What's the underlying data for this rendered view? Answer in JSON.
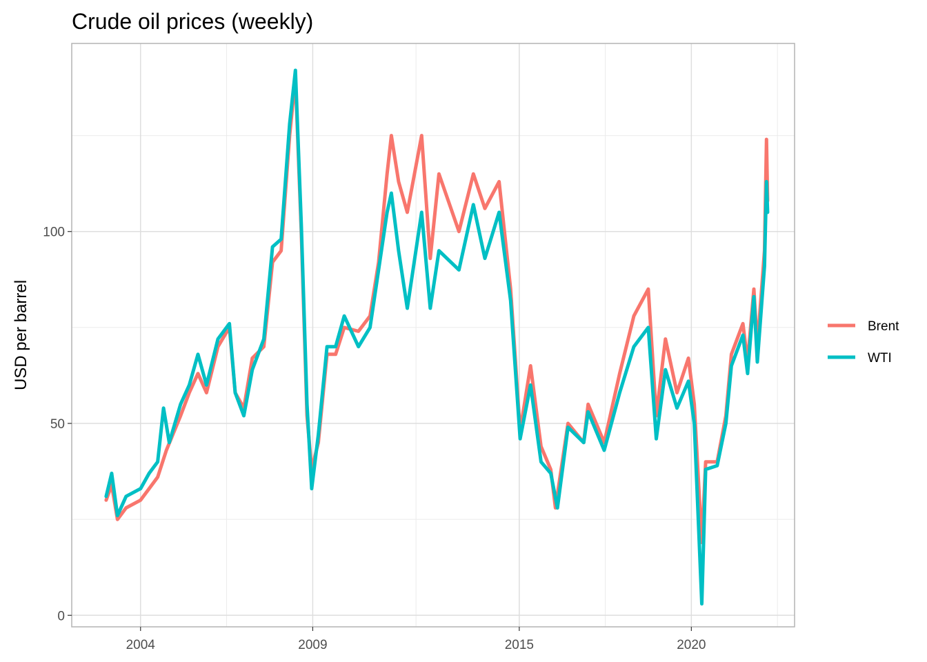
{
  "chart_data": {
    "type": "line",
    "title": "Crude oil prices (weekly)",
    "xlabel": "",
    "ylabel": "USD per barrel",
    "x_tick_labels": [
      "2004",
      "2009",
      "2015",
      "2020"
    ],
    "x_tick_dates": [
      "2004-01-01",
      "2009-01-01",
      "2015-01-01",
      "2020-01-01"
    ],
    "y_ticks": [
      0,
      50,
      100
    ],
    "xlim": [
      "2002-01-01",
      "2022-12-31"
    ],
    "ylim": [
      -3,
      149
    ],
    "grid": true,
    "legend_position": "right",
    "series": [
      {
        "name": "Brent",
        "color": "#F8766D",
        "points": [
          [
            "2003-01-01",
            30
          ],
          [
            "2003-03-01",
            34
          ],
          [
            "2003-05-01",
            25
          ],
          [
            "2003-08-01",
            28
          ],
          [
            "2004-01-01",
            30
          ],
          [
            "2004-04-01",
            33
          ],
          [
            "2004-07-01",
            36
          ],
          [
            "2004-10-01",
            43
          ],
          [
            "2005-03-01",
            52
          ],
          [
            "2005-06-01",
            58
          ],
          [
            "2005-09-01",
            63
          ],
          [
            "2005-12-01",
            58
          ],
          [
            "2006-04-01",
            70
          ],
          [
            "2006-08-01",
            75
          ],
          [
            "2006-10-01",
            58
          ],
          [
            "2007-01-01",
            54
          ],
          [
            "2007-04-01",
            67
          ],
          [
            "2007-08-01",
            70
          ],
          [
            "2007-11-01",
            92
          ],
          [
            "2008-02-01",
            95
          ],
          [
            "2008-05-01",
            125
          ],
          [
            "2008-07-01",
            140
          ],
          [
            "2008-09-01",
            100
          ],
          [
            "2008-11-01",
            52
          ],
          [
            "2008-12-21",
            38
          ],
          [
            "2009-03-01",
            45
          ],
          [
            "2009-06-01",
            68
          ],
          [
            "2009-09-01",
            68
          ],
          [
            "2009-12-01",
            75
          ],
          [
            "2010-05-01",
            74
          ],
          [
            "2010-09-01",
            78
          ],
          [
            "2010-12-01",
            92
          ],
          [
            "2011-03-01",
            115
          ],
          [
            "2011-04-15",
            125
          ],
          [
            "2011-07-01",
            113
          ],
          [
            "2011-10-01",
            105
          ],
          [
            "2012-03-01",
            125
          ],
          [
            "2012-06-01",
            93
          ],
          [
            "2012-09-01",
            115
          ],
          [
            "2013-04-01",
            100
          ],
          [
            "2013-09-01",
            115
          ],
          [
            "2014-01-01",
            106
          ],
          [
            "2014-06-01",
            113
          ],
          [
            "2014-10-01",
            85
          ],
          [
            "2015-01-10",
            48
          ],
          [
            "2015-05-01",
            65
          ],
          [
            "2015-08-20",
            44
          ],
          [
            "2015-12-01",
            38
          ],
          [
            "2016-01-20",
            28
          ],
          [
            "2016-06-01",
            50
          ],
          [
            "2016-11-15",
            45
          ],
          [
            "2017-01-01",
            55
          ],
          [
            "2017-06-20",
            45
          ],
          [
            "2017-12-01",
            63
          ],
          [
            "2018-05-01",
            78
          ],
          [
            "2018-10-01",
            85
          ],
          [
            "2018-12-25",
            52
          ],
          [
            "2019-04-01",
            72
          ],
          [
            "2019-08-01",
            58
          ],
          [
            "2019-12-01",
            67
          ],
          [
            "2020-02-01",
            55
          ],
          [
            "2020-04-21",
            19
          ],
          [
            "2020-06-01",
            40
          ],
          [
            "2020-10-01",
            40
          ],
          [
            "2021-01-01",
            52
          ],
          [
            "2021-03-01",
            68
          ],
          [
            "2021-07-01",
            76
          ],
          [
            "2021-08-20",
            66
          ],
          [
            "2021-10-25",
            85
          ],
          [
            "2021-12-01",
            70
          ],
          [
            "2022-02-15",
            95
          ],
          [
            "2022-03-08",
            124
          ],
          [
            "2022-03-20",
            108
          ]
        ]
      },
      {
        "name": "WTI",
        "color": "#00BFC4",
        "points": [
          [
            "2003-01-01",
            31
          ],
          [
            "2003-03-01",
            37
          ],
          [
            "2003-05-01",
            26
          ],
          [
            "2003-08-01",
            31
          ],
          [
            "2004-01-01",
            33
          ],
          [
            "2004-04-01",
            37
          ],
          [
            "2004-07-01",
            40
          ],
          [
            "2004-09-01",
            54
          ],
          [
            "2004-11-01",
            45
          ],
          [
            "2005-03-01",
            55
          ],
          [
            "2005-06-01",
            60
          ],
          [
            "2005-09-01",
            68
          ],
          [
            "2005-12-01",
            60
          ],
          [
            "2006-04-01",
            72
          ],
          [
            "2006-08-01",
            76
          ],
          [
            "2006-10-01",
            58
          ],
          [
            "2007-01-01",
            52
          ],
          [
            "2007-04-01",
            64
          ],
          [
            "2007-08-01",
            72
          ],
          [
            "2007-11-01",
            96
          ],
          [
            "2008-02-01",
            98
          ],
          [
            "2008-05-01",
            128
          ],
          [
            "2008-07-01",
            142
          ],
          [
            "2008-09-01",
            102
          ],
          [
            "2008-11-01",
            55
          ],
          [
            "2008-12-21",
            33
          ],
          [
            "2009-03-01",
            47
          ],
          [
            "2009-06-01",
            70
          ],
          [
            "2009-09-01",
            70
          ],
          [
            "2009-12-01",
            78
          ],
          [
            "2010-05-01",
            70
          ],
          [
            "2010-09-01",
            75
          ],
          [
            "2010-12-01",
            90
          ],
          [
            "2011-03-01",
            105
          ],
          [
            "2011-04-15",
            110
          ],
          [
            "2011-07-01",
            95
          ],
          [
            "2011-10-01",
            80
          ],
          [
            "2012-03-01",
            105
          ],
          [
            "2012-06-01",
            80
          ],
          [
            "2012-09-01",
            95
          ],
          [
            "2013-04-01",
            90
          ],
          [
            "2013-09-01",
            107
          ],
          [
            "2014-01-01",
            93
          ],
          [
            "2014-06-01",
            105
          ],
          [
            "2014-10-01",
            82
          ],
          [
            "2015-01-10",
            46
          ],
          [
            "2015-05-01",
            60
          ],
          [
            "2015-08-20",
            40
          ],
          [
            "2015-12-01",
            37
          ],
          [
            "2016-02-10",
            28
          ],
          [
            "2016-06-01",
            49
          ],
          [
            "2016-11-15",
            45
          ],
          [
            "2017-01-01",
            53
          ],
          [
            "2017-06-20",
            43
          ],
          [
            "2017-12-01",
            58
          ],
          [
            "2018-05-01",
            70
          ],
          [
            "2018-10-01",
            75
          ],
          [
            "2018-12-25",
            46
          ],
          [
            "2019-04-01",
            64
          ],
          [
            "2019-08-01",
            54
          ],
          [
            "2019-12-01",
            61
          ],
          [
            "2020-02-01",
            50
          ],
          [
            "2020-04-21",
            3
          ],
          [
            "2020-06-01",
            38
          ],
          [
            "2020-10-01",
            39
          ],
          [
            "2021-01-01",
            50
          ],
          [
            "2021-03-01",
            65
          ],
          [
            "2021-07-01",
            73
          ],
          [
            "2021-08-20",
            63
          ],
          [
            "2021-10-25",
            83
          ],
          [
            "2021-12-01",
            66
          ],
          [
            "2022-02-15",
            91
          ],
          [
            "2022-03-08",
            113
          ],
          [
            "2022-03-20",
            105
          ]
        ]
      }
    ]
  }
}
